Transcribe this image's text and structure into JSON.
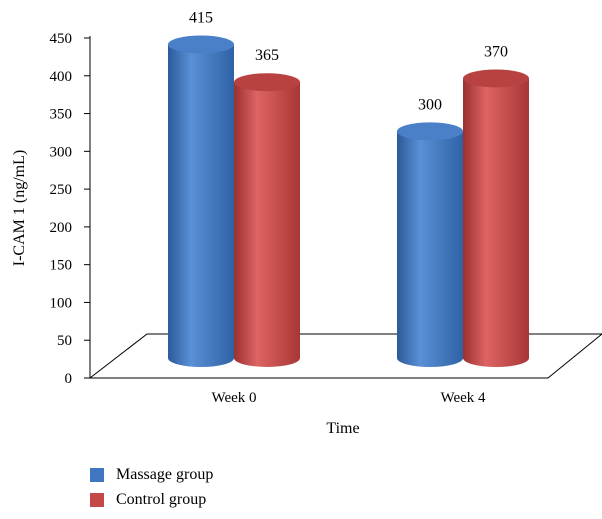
{
  "chart_data": {
    "type": "bar",
    "categories": [
      "Week 0",
      "Week 4"
    ],
    "series": [
      {
        "name": "Massage group",
        "values": [
          415,
          300
        ],
        "color": "#3e76c0"
      },
      {
        "name": "Control group",
        "values": [
          365,
          370
        ],
        "color": "#c54848"
      }
    ],
    "ylabel": "I-CAM 1 (ng/mL)",
    "xlabel": "Time",
    "ylim": [
      0,
      450
    ],
    "yticks": [
      0,
      50,
      100,
      150,
      200,
      250,
      300,
      350,
      400,
      450
    ],
    "grid": false,
    "legend_position": "bottom-left",
    "style": "3d-cylinder"
  }
}
